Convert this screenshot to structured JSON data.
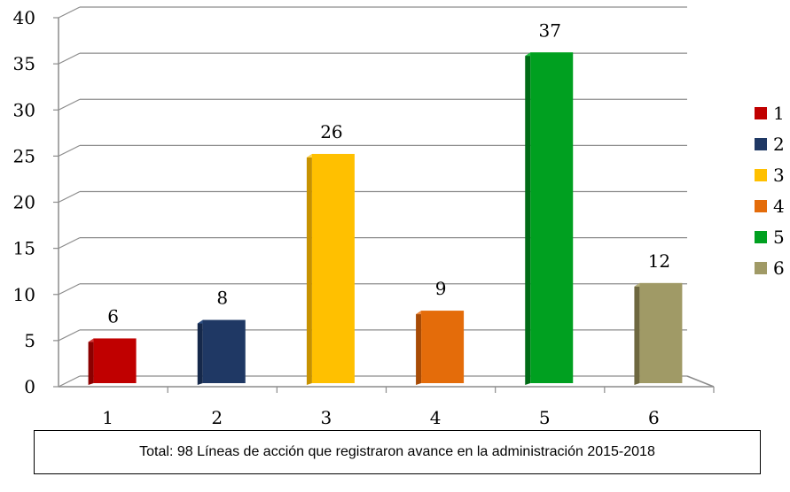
{
  "chart_data": {
    "type": "bar",
    "categories": [
      "1",
      "2",
      "3",
      "4",
      "5",
      "6"
    ],
    "values": [
      6,
      8,
      26,
      9,
      37,
      12
    ],
    "data_labels": [
      "6",
      "8",
      "26",
      "9",
      "37",
      "12"
    ],
    "colors": [
      "#C00000",
      "#1F3864",
      "#FFC000",
      "#E46C0A",
      "#00A020",
      "#A09A66"
    ],
    "side_colors": [
      "#8B0000",
      "#15284A",
      "#C79200",
      "#A84B05",
      "#006B16",
      "#6E6840"
    ],
    "top_colors": [
      "#D43A3A",
      "#2E4F82",
      "#FFD24D",
      "#F08A3C",
      "#22C040",
      "#B8B27E"
    ],
    "ylim": [
      0,
      40
    ],
    "y_ticks": [
      "0",
      "5",
      "10",
      "15",
      "20",
      "25",
      "30",
      "35",
      "40"
    ],
    "y_tick_values": [
      0,
      5,
      10,
      15,
      20,
      25,
      30,
      35,
      40
    ],
    "grid": true,
    "legend": {
      "placement": "right",
      "entries": [
        "1",
        "2",
        "3",
        "4",
        "5",
        "6"
      ]
    },
    "title": "",
    "xlabel": "",
    "ylabel": ""
  },
  "caption": "Total: 98 Líneas de acción que registraron avance en la administración 2015-2018"
}
